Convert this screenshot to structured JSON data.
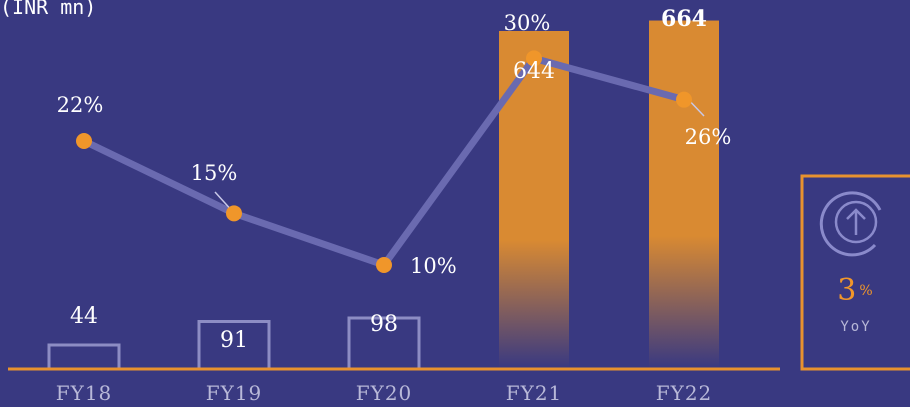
{
  "chart_data": {
    "type": "bar",
    "unit_label": "(INR mn)",
    "categories": [
      "FY18",
      "FY19",
      "FY20",
      "FY21",
      "FY22"
    ],
    "series": [
      {
        "values": [
          44,
          91,
          98,
          644,
          664
        ]
      },
      {
        "values": [
          22,
          15,
          10,
          30,
          26
        ]
      }
    ],
    "value_labels": [
      "44",
      "91",
      "98",
      "644",
      "664"
    ],
    "percent_labels": [
      "22%",
      "15%",
      "10%",
      "30%",
      "26%"
    ],
    "yoy": {
      "value": "3",
      "suffix": "%",
      "label": "YoY",
      "icon": "arrow-up-circle-icon"
    },
    "colors": {
      "background": "#393981",
      "bar_highlight": "#d98a32",
      "bar_outline": "#8d8dc4",
      "line": "#6a6ab0",
      "marker": "#f0962a",
      "axis": "#e8922e",
      "text": "#ffffff",
      "category_text": "#b8b8d8",
      "accent": "#f0962a"
    }
  }
}
